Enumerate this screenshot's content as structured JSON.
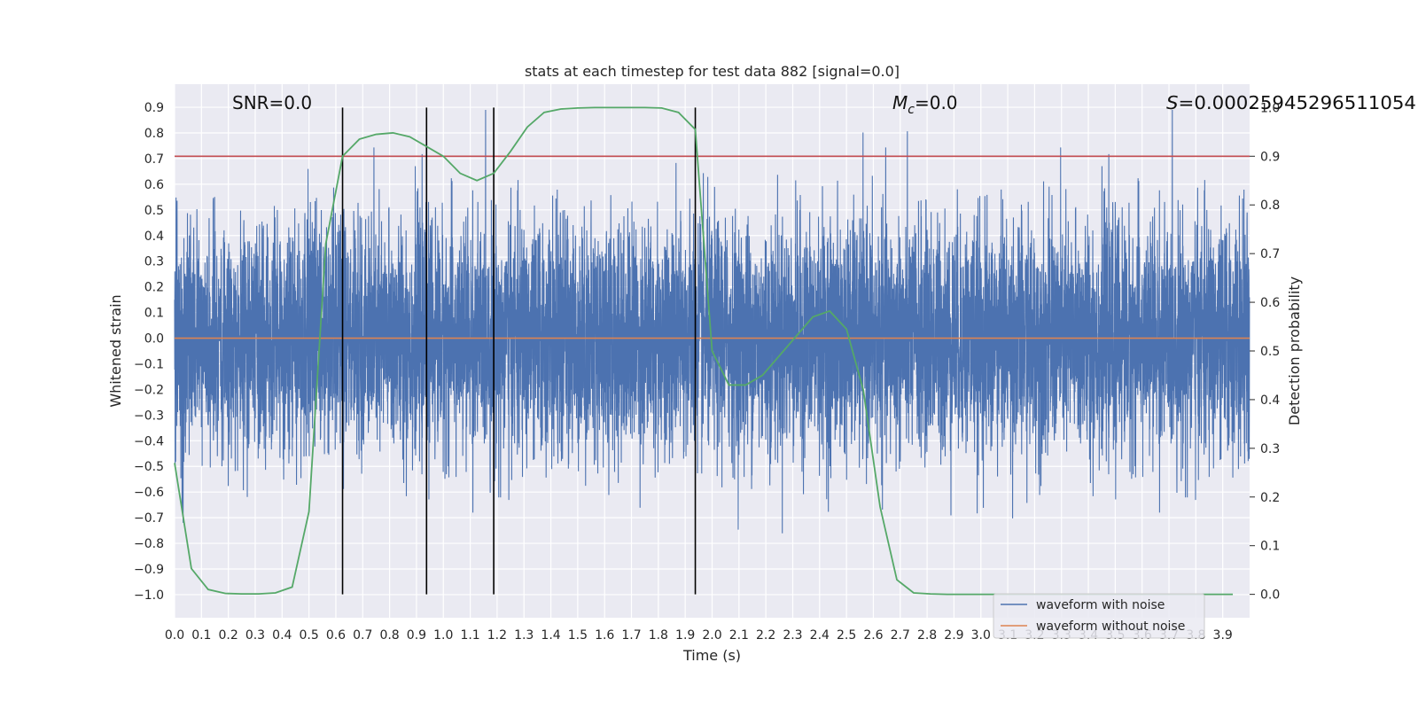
{
  "chart_data": {
    "type": "line",
    "title": "stats at each timestep for test data 882 [signal=0.0]",
    "xlabel": "Time (s)",
    "ylabel": "Whitened strain",
    "y2label": "Detection probability",
    "xlim": [
      0.0,
      4.0
    ],
    "ylim": [
      -1.09,
      0.99
    ],
    "y2lim": [
      -0.048,
      1.048
    ],
    "grid": true,
    "x_ticks": [
      "0.0",
      "0.1",
      "0.2",
      "0.3",
      "0.4",
      "0.5",
      "0.6",
      "0.7",
      "0.8",
      "0.9",
      "1.0",
      "1.1",
      "1.2",
      "1.3",
      "1.4",
      "1.5",
      "1.6",
      "1.7",
      "1.8",
      "1.9",
      "2.0",
      "2.1",
      "2.2",
      "2.3",
      "2.4",
      "2.5",
      "2.6",
      "2.7",
      "2.8",
      "2.9",
      "3.0",
      "3.1",
      "3.2",
      "3.3",
      "3.4",
      "3.5",
      "3.6",
      "3.7",
      "3.8",
      "3.9"
    ],
    "y_ticks": [
      "0.9",
      "0.8",
      "0.7",
      "0.6",
      "0.5",
      "0.4",
      "0.3",
      "0.2",
      "0.1",
      "0.0",
      "−0.1",
      "−0.2",
      "−0.3",
      "−0.4",
      "−0.5",
      "−0.6",
      "−0.7",
      "−0.8",
      "−0.9",
      "−1.0"
    ],
    "y2_ticks": [
      "1.0",
      "0.9",
      "0.8",
      "0.7",
      "0.6",
      "0.5",
      "0.4",
      "0.3",
      "0.2",
      "0.1",
      "0.0"
    ],
    "annotations": {
      "snr": "SNR=0.0",
      "mc_symbol": "M",
      "mc_sub": "c",
      "mc_value": "=0.0",
      "s_symbol": "S",
      "s_value": "=0.00025945296511054"
    },
    "series": [
      {
        "name": "waveform with noise",
        "color": "#4c72b0",
        "axis": "left",
        "sample_rate": 2048,
        "amplitude_typical": 0.3,
        "peak_max": 0.89,
        "peak_min": -1.0
      },
      {
        "name": "waveform without noise",
        "color": "#dd8452",
        "axis": "left",
        "constant": 0.0
      },
      {
        "name": "detection probability",
        "color": "#55a868",
        "axis": "right",
        "x": [
          0.0,
          0.0625,
          0.125,
          0.1875,
          0.25,
          0.3125,
          0.375,
          0.4375,
          0.5,
          0.5625,
          0.625,
          0.6875,
          0.75,
          0.8125,
          0.875,
          0.9375,
          1.0,
          1.0625,
          1.125,
          1.1875,
          1.25,
          1.3125,
          1.375,
          1.4375,
          1.5,
          1.5625,
          1.625,
          1.6875,
          1.75,
          1.8125,
          1.875,
          1.9375,
          2.0,
          2.0625,
          2.125,
          2.1875,
          2.25,
          2.3125,
          2.375,
          2.4375,
          2.5,
          2.5625,
          2.625,
          2.6875,
          2.75,
          2.8125,
          2.875,
          2.9375,
          3.0,
          3.0625,
          3.125,
          3.1875,
          3.25,
          3.3125,
          3.375,
          3.4375,
          3.5,
          3.5625,
          3.625,
          3.6875,
          3.75,
          3.8125,
          3.875,
          3.9375
        ],
        "y": [
          0.27,
          0.053,
          0.01,
          0.002,
          0.001,
          0.001,
          0.003,
          0.015,
          0.17,
          0.72,
          0.9,
          0.935,
          0.945,
          0.948,
          0.94,
          0.92,
          0.9,
          0.865,
          0.85,
          0.865,
          0.91,
          0.96,
          0.99,
          0.997,
          0.999,
          1.0,
          1.0,
          1.0,
          1.0,
          0.999,
          0.99,
          0.955,
          0.5,
          0.43,
          0.43,
          0.45,
          0.49,
          0.53,
          0.57,
          0.582,
          0.545,
          0.42,
          0.18,
          0.03,
          0.003,
          0.001,
          0.0,
          0.0,
          0.0,
          0.0,
          0.0,
          0.0,
          0.0,
          0.0,
          0.0,
          0.0,
          0.0,
          0.0,
          0.0,
          0.0,
          0.0,
          0.0,
          0.0,
          0.0
        ]
      },
      {
        "name": "threshold",
        "color": "#c44e52",
        "axis": "right",
        "constant": 0.9
      }
    ],
    "event_lines_x": [
      0.625,
      0.9375,
      1.1875,
      1.9375
    ],
    "legend": {
      "position": "lower right",
      "entries": [
        "waveform with noise",
        "waveform without noise"
      ]
    }
  }
}
